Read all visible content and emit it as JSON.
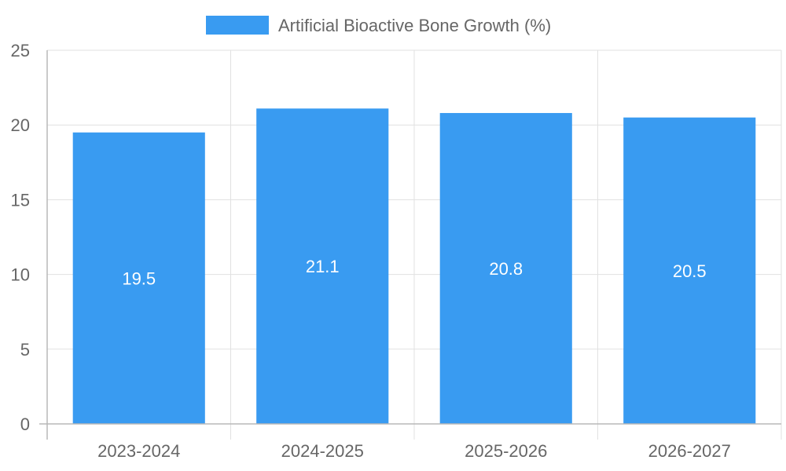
{
  "chart_data": {
    "type": "bar",
    "categories": [
      "2023-2024",
      "2024-2025",
      "2025-2026",
      "2026-2027"
    ],
    "series": [
      {
        "name": "Artificial Bioactive Bone Growth (%)",
        "values": [
          19.5,
          21.1,
          20.8,
          20.5
        ],
        "color": "#399BF1"
      }
    ],
    "ylim": [
      0,
      25
    ],
    "yticks": [
      0,
      5,
      10,
      15,
      20,
      25
    ],
    "grid": true,
    "legend": "top-center",
    "title": "",
    "xlabel": "",
    "ylabel": ""
  },
  "colors": {
    "bar": "#399BF1",
    "grid": "#e1e1e1",
    "axis": "#b8b8b8",
    "text": "#666666",
    "data_label": "#ffffff"
  }
}
